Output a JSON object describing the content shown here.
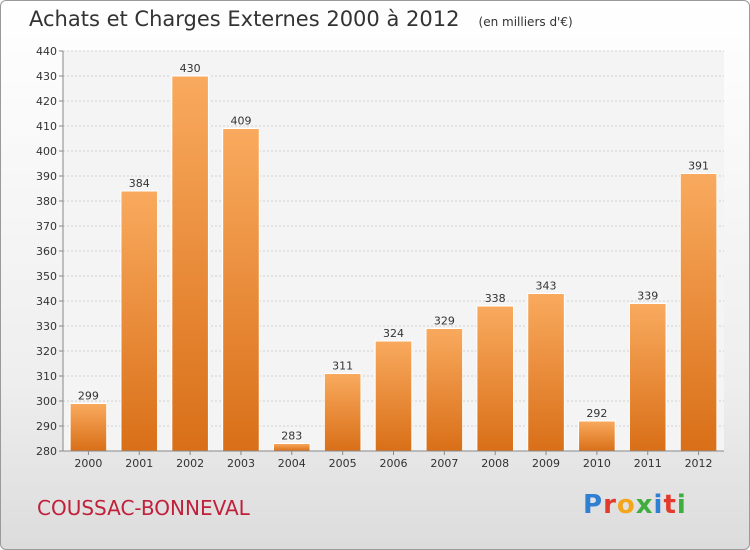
{
  "title": "Achats et Charges Externes 2000 à 2012",
  "subtitle": "(en milliers d'€)",
  "commune": "COUSSAC-BONNEVAL",
  "logo_text": "Proxiti",
  "colors": {
    "bar_light": "#f9aa5e",
    "bar_dark": "#d96f18",
    "commune": "#c0203a",
    "logo": [
      "#2f7fd3",
      "#e23b2e",
      "#f3a51b",
      "#3fae3f",
      "#2f7fd3",
      "#e23b2e",
      "#3fae3f"
    ]
  },
  "chart_data": {
    "type": "bar",
    "title": "Achats et Charges Externes 2000 à 2012",
    "subtitle": "(en milliers d'€)",
    "categories": [
      "2000",
      "2001",
      "2002",
      "2003",
      "2004",
      "2005",
      "2006",
      "2007",
      "2008",
      "2009",
      "2010",
      "2011",
      "2012"
    ],
    "values": [
      299,
      384,
      430,
      409,
      283,
      311,
      324,
      329,
      338,
      343,
      292,
      339,
      391
    ],
    "ylim": [
      280,
      440
    ],
    "yticks": [
      280,
      290,
      300,
      310,
      320,
      330,
      340,
      350,
      360,
      370,
      380,
      390,
      400,
      410,
      420,
      430,
      440
    ],
    "grid": true,
    "legend": "none"
  }
}
